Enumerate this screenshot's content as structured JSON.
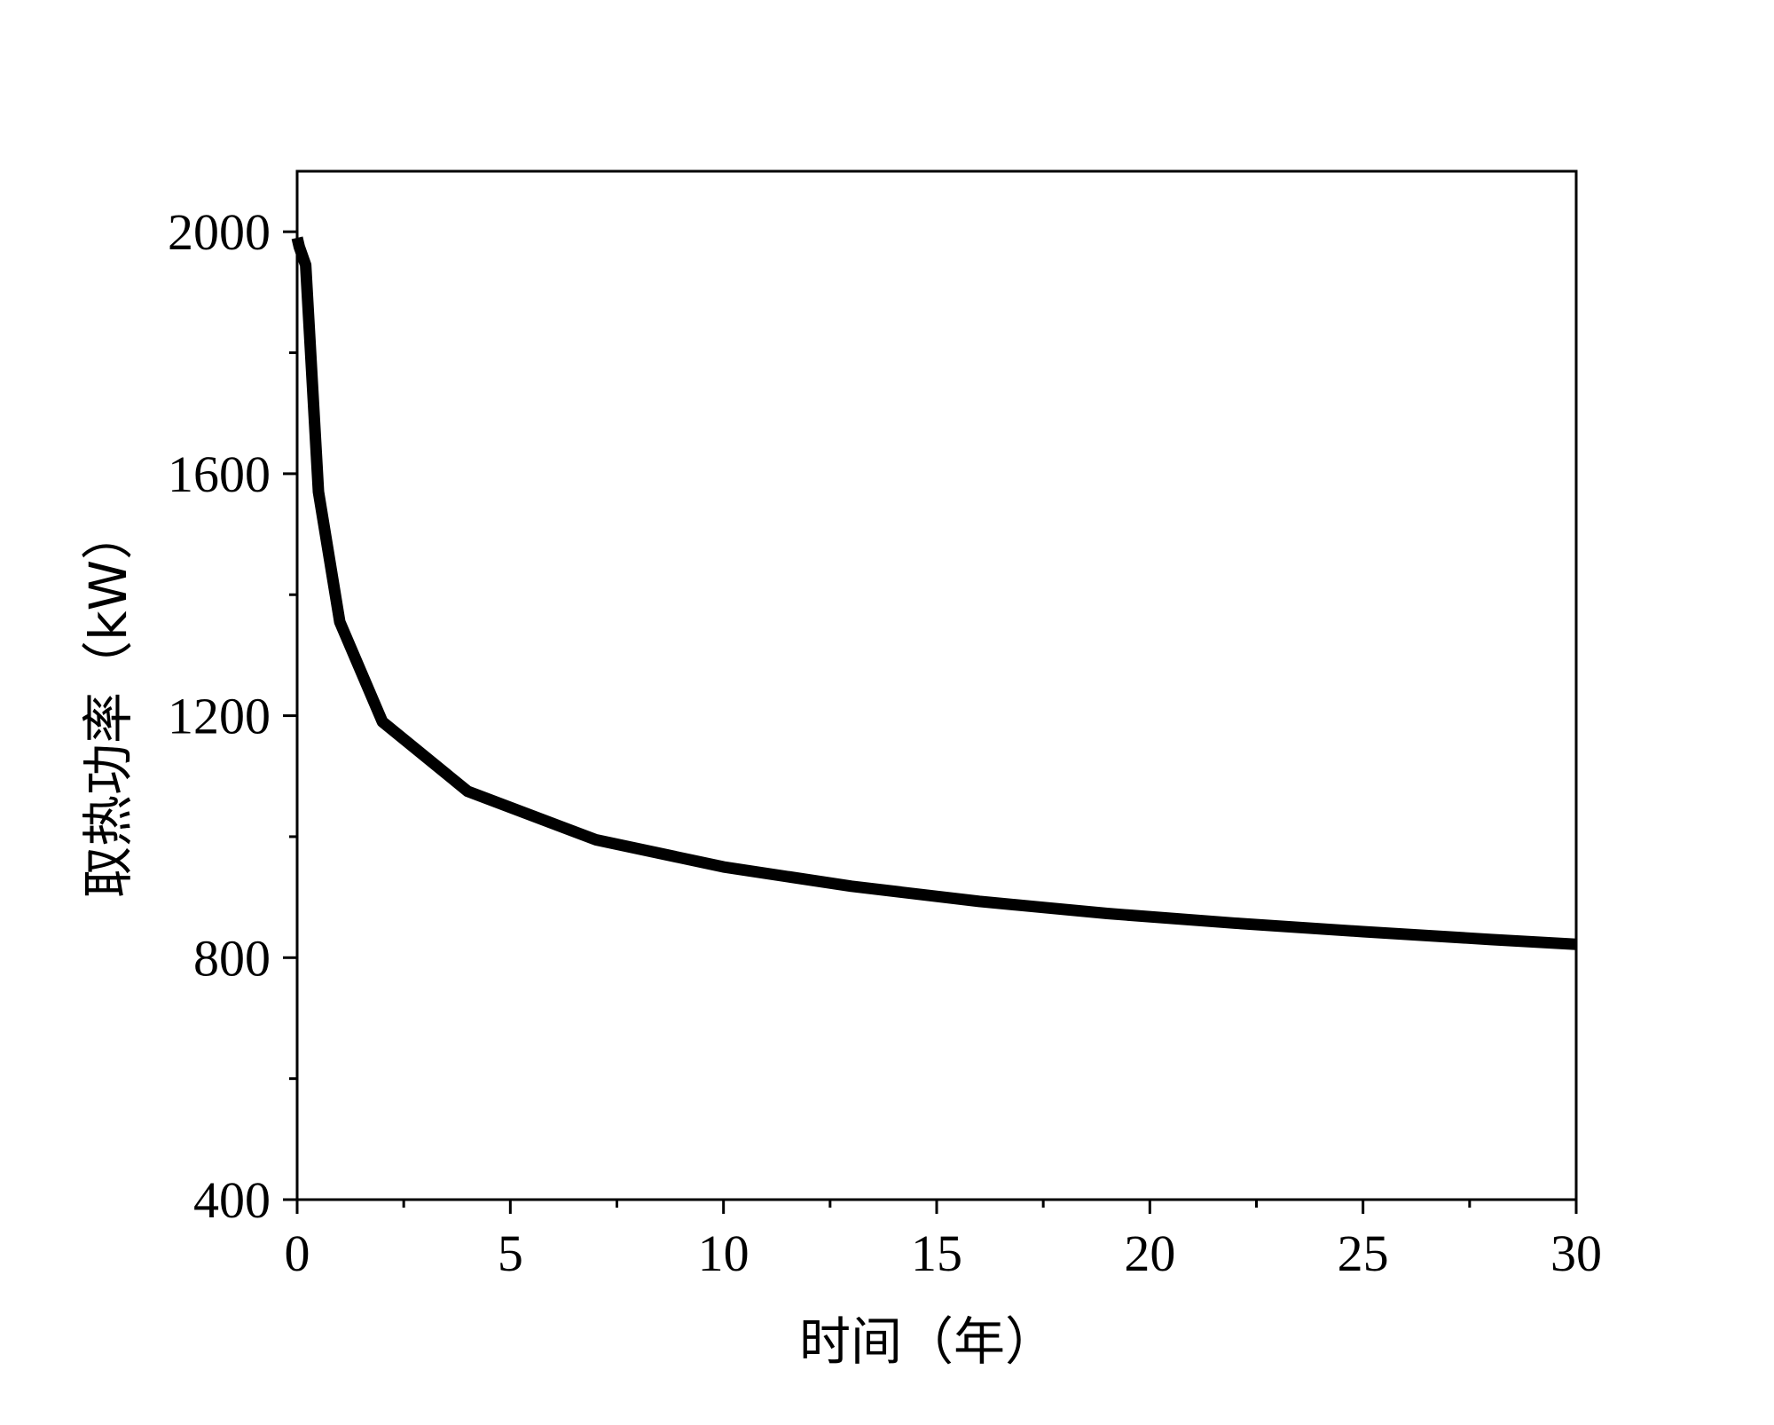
{
  "chart_data": {
    "type": "line",
    "title": "",
    "xlabel": "时间（年）",
    "ylabel": "取热功率（kW）",
    "xlim": [
      0,
      30
    ],
    "ylim": [
      400,
      2100
    ],
    "x_ticks": [
      0,
      5,
      10,
      15,
      20,
      25,
      30
    ],
    "x_tick_labels": [
      "0",
      "5",
      "10",
      "15",
      "20",
      "25",
      "30"
    ],
    "y_ticks": [
      400,
      800,
      1200,
      1600,
      2000
    ],
    "y_tick_labels": [
      "400",
      "800",
      "1200",
      "1600",
      "2000"
    ],
    "grid": false,
    "legend": "none",
    "series": [
      {
        "color": "#000000",
        "x": [
          0,
          0.05,
          0.2,
          0.5,
          1,
          2,
          4,
          7,
          10,
          13,
          16,
          19,
          22,
          25,
          28,
          30
        ],
        "y": [
          1990,
          1975,
          1945,
          1570,
          1355,
          1190,
          1075,
          995,
          950,
          918,
          893,
          873,
          857,
          843,
          830,
          822
        ]
      }
    ]
  }
}
